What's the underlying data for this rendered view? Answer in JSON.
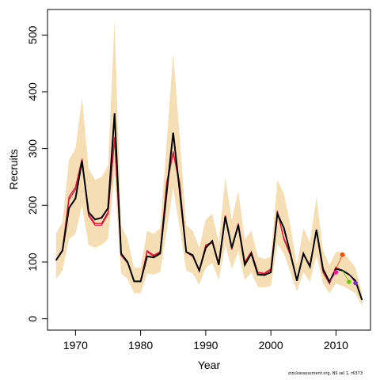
{
  "chart_data": {
    "type": "line",
    "xlabel": "Year",
    "ylabel": "Recruits",
    "xlim": [
      1965.7,
      2015.3
    ],
    "ylim": [
      -20,
      545
    ],
    "xticks": [
      1970,
      1980,
      1990,
      2000,
      2010
    ],
    "yticks": [
      0,
      100,
      200,
      300,
      400,
      500
    ],
    "grid": false,
    "legend": "none",
    "colors": {
      "band": "#f5deb3",
      "main_line": "#000000",
      "retro_lines": "#dc143c",
      "points": [
        "#ff1493",
        "#ff4500",
        "#66cc00",
        "#7b2fbe"
      ]
    },
    "x": [
      1967,
      1968,
      1969,
      1970,
      1971,
      1972,
      1973,
      1974,
      1975,
      1976,
      1977,
      1978,
      1979,
      1980,
      1981,
      1982,
      1983,
      1984,
      1985,
      1986,
      1987,
      1988,
      1989,
      1990,
      1991,
      1992,
      1993,
      1994,
      1995,
      1996,
      1997,
      1998,
      1999,
      2000,
      2001,
      2002,
      2003,
      2004,
      2005,
      2006,
      2007,
      2008,
      2009,
      2010,
      2011,
      2012,
      2013,
      2014
    ],
    "series": [
      {
        "values": [
          103,
          120,
          195,
          212,
          278,
          188,
          175,
          178,
          195,
          362,
          115,
          100,
          66,
          66,
          110,
          108,
          115,
          222,
          328,
          225,
          118,
          112,
          85,
          125,
          137,
          95,
          180,
          125,
          165,
          95,
          115,
          78,
          77,
          82,
          185,
          160,
          115,
          67,
          115,
          92,
          157,
          88,
          65,
          88,
          85,
          78,
          67,
          33
        ]
      }
    ],
    "band_upper": [
      150,
      170,
      280,
      300,
      390,
      265,
      245,
      250,
      270,
      525,
      165,
      140,
      90,
      90,
      155,
      150,
      160,
      310,
      468,
      320,
      165,
      155,
      125,
      175,
      185,
      135,
      248,
      175,
      225,
      140,
      155,
      110,
      105,
      110,
      245,
      220,
      165,
      95,
      160,
      135,
      215,
      120,
      95,
      118,
      118,
      105,
      90,
      45
    ],
    "band_lower": [
      70,
      85,
      140,
      150,
      200,
      130,
      125,
      130,
      140,
      255,
      80,
      70,
      45,
      45,
      80,
      78,
      82,
      155,
      230,
      160,
      85,
      80,
      60,
      90,
      98,
      68,
      130,
      88,
      118,
      68,
      82,
      56,
      55,
      58,
      132,
      115,
      82,
      48,
      82,
      65,
      112,
      62,
      45,
      62,
      58,
      52,
      45,
      22
    ],
    "retro_series": [
      {
        "start": 1967,
        "values": [
          103,
          122,
          215,
          232,
          282,
          182,
          165,
          165,
          185,
          318,
          112,
          98,
          66,
          66,
          120,
          112,
          118,
          240,
          295,
          240,
          118,
          110,
          85,
          130,
          135,
          98,
          182,
          122,
          168,
          100,
          118,
          82,
          80,
          88,
          190,
          140,
          112,
          70,
          112,
          95,
          155,
          82,
          62,
          92
        ]
      },
      {
        "start": 1967,
        "values": [
          103,
          120,
          210,
          228,
          280,
          184,
          168,
          168,
          188,
          320,
          113,
          99,
          66,
          66,
          118,
          110,
          117,
          235,
          292,
          236,
          117,
          110,
          85,
          128,
          134,
          97,
          181,
          123,
          166,
          98,
          117,
          81,
          79,
          86,
          188,
          142,
          113,
          69,
          113,
          94,
          156,
          84,
          63,
          90,
          85
        ]
      }
    ],
    "points": [
      {
        "x": 2010,
        "y": 82
      },
      {
        "x": 2011,
        "y": 113
      },
      {
        "x": 2012,
        "y": 65
      },
      {
        "x": 2013,
        "y": 63
      }
    ]
  },
  "footnote": "stockassessment.org, NS sel 1, r6373"
}
